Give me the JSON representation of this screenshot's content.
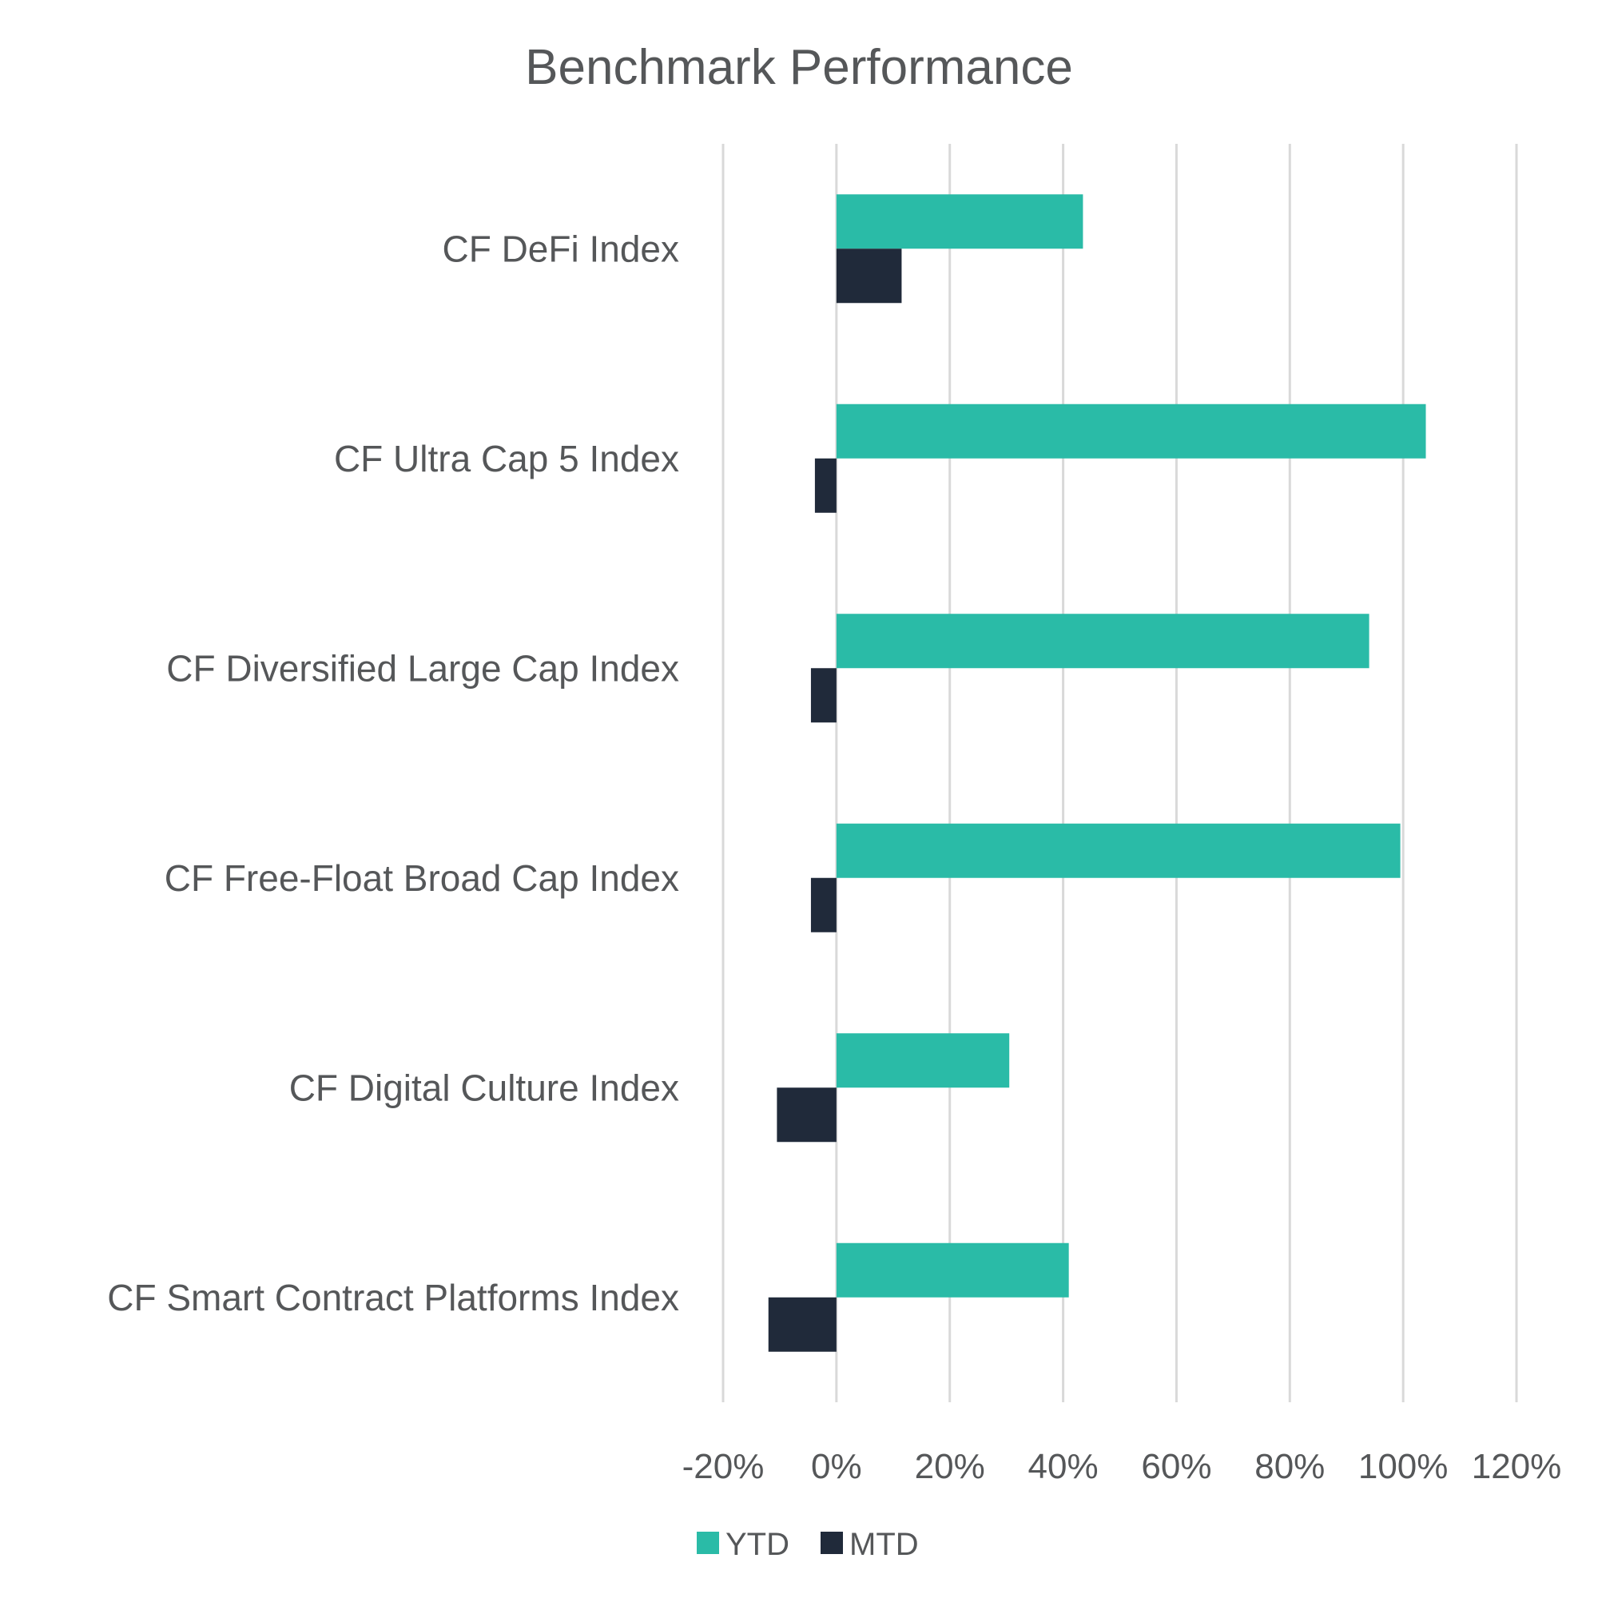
{
  "chart_data": {
    "type": "bar",
    "orientation": "horizontal",
    "title": "Benchmark Performance",
    "categories": [
      "CF DeFi Index",
      "CF Ultra Cap 5 Index",
      "CF Diversified Large Cap Index",
      "CF Free-Float Broad Cap Index",
      "CF Digital Culture Index",
      "CF Smart Contract Platforms Index"
    ],
    "series": [
      {
        "name": "YTD",
        "color": "#2abba7",
        "values": [
          43.5,
          104,
          94,
          99.5,
          30.5,
          41
        ]
      },
      {
        "name": "MTD",
        "color": "#202a3a",
        "values": [
          11.5,
          -3.8,
          -4.5,
          -4.5,
          -10.5,
          -12
        ]
      }
    ],
    "xlim": [
      -20,
      120
    ],
    "xticks": [
      -20,
      0,
      20,
      40,
      60,
      80,
      100,
      120
    ],
    "xtick_labels": [
      "-20%",
      "0%",
      "20%",
      "40%",
      "60%",
      "80%",
      "100%",
      "120%"
    ],
    "xlabel": "",
    "ylabel": "",
    "grid": true,
    "legend_position": "bottom"
  }
}
